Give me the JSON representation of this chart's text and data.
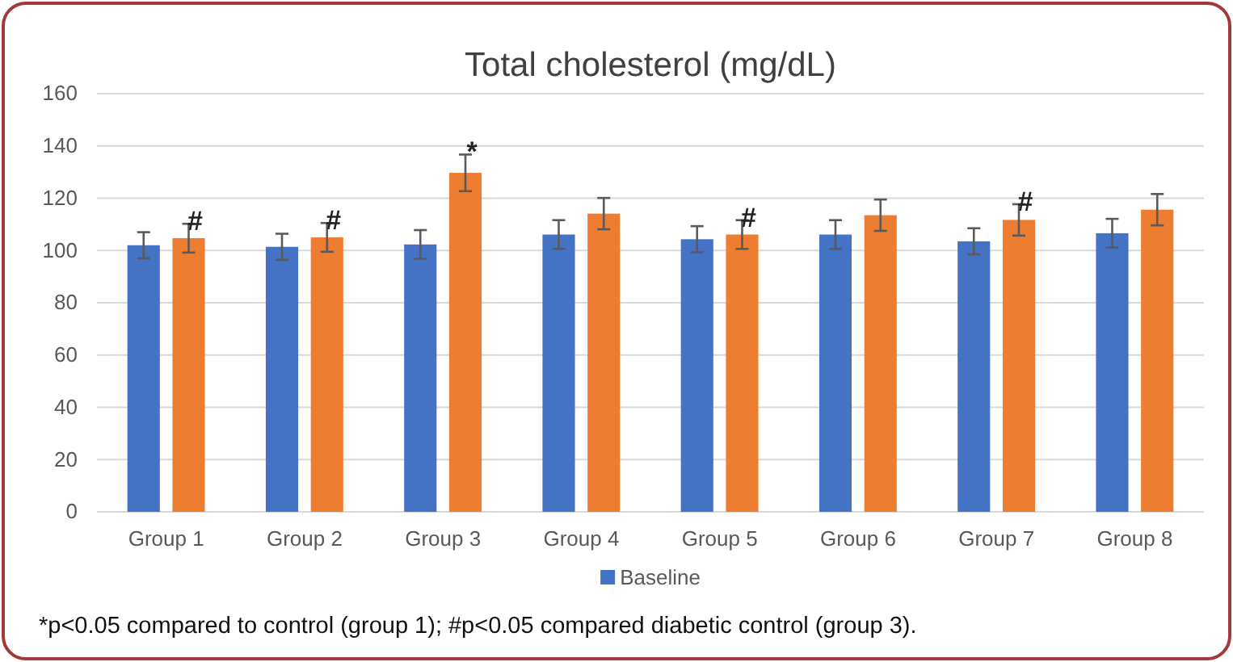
{
  "chart_data": {
    "type": "bar",
    "title": "Total cholesterol (mg/dL)",
    "categories": [
      "Group 1",
      "Group 2",
      "Group 3",
      "Group 4",
      "Group 5",
      "Group 6",
      "Group 7",
      "Group 8"
    ],
    "series": [
      {
        "name": "Baseline",
        "color": "#4472c4",
        "values": [
          102,
          101.4,
          102.3,
          106.1,
          104.3,
          106.1,
          103.5,
          106.6
        ],
        "errors": [
          5,
          5,
          5.5,
          5.5,
          5,
          5.5,
          5,
          5.5
        ]
      },
      {
        "color": "#ed7d31",
        "values": [
          104.7,
          105,
          129.7,
          114.1,
          106.1,
          113.5,
          111.7,
          115.6
        ],
        "errors": [
          5.5,
          5.5,
          7,
          6,
          5.5,
          6,
          6,
          6
        ]
      }
    ],
    "ylim": [
      0,
      160
    ],
    "yticks": [
      0,
      20,
      40,
      60,
      80,
      100,
      120,
      140,
      160
    ],
    "grid": "y",
    "legend": "bottom",
    "annotations": [
      {
        "text": "#",
        "x": "Group 1",
        "y": 104.7
      },
      {
        "text": "#",
        "x": "Group 2",
        "y": 105
      },
      {
        "text": "*",
        "x": "Group 3",
        "y": 129.7
      },
      {
        "text": "#",
        "x": "Group 5",
        "y": 106.1
      },
      {
        "text": "#",
        "x": "Group 7",
        "y": 111.7
      },
      "*p<0.05 compared to control (group 1); #p<0.05 compared diabetic control (group 3)."
    ]
  }
}
